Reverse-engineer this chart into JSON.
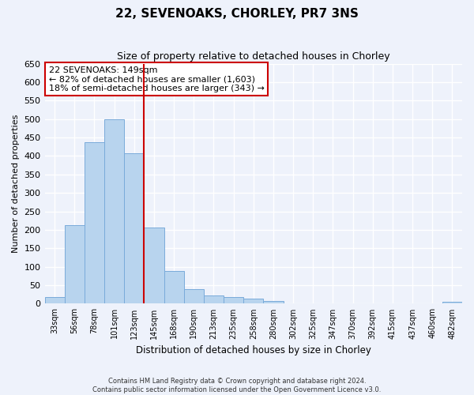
{
  "title": "22, SEVENOAKS, CHORLEY, PR7 3NS",
  "subtitle": "Size of property relative to detached houses in Chorley",
  "xlabel": "Distribution of detached houses by size in Chorley",
  "ylabel": "Number of detached properties",
  "bin_labels": [
    "33sqm",
    "56sqm",
    "78sqm",
    "101sqm",
    "123sqm",
    "145sqm",
    "168sqm",
    "190sqm",
    "213sqm",
    "235sqm",
    "258sqm",
    "280sqm",
    "302sqm",
    "325sqm",
    "347sqm",
    "370sqm",
    "392sqm",
    "415sqm",
    "437sqm",
    "460sqm",
    "482sqm"
  ],
  "bar_values": [
    18,
    213,
    437,
    500,
    408,
    207,
    88,
    40,
    22,
    18,
    13,
    8,
    0,
    0,
    0,
    0,
    0,
    0,
    0,
    0,
    5
  ],
  "bar_color": "#b8d4ee",
  "bar_edge_color": "#7aabda",
  "highlight_line_color": "#cc0000",
  "annotation_line1": "22 SEVENOAKS: 149sqm",
  "annotation_line2": "← 82% of detached houses are smaller (1,603)",
  "annotation_line3": "18% of semi-detached houses are larger (343) →",
  "annotation_box_color": "#ffffff",
  "annotation_border_color": "#cc0000",
  "ylim": [
    0,
    650
  ],
  "yticks": [
    0,
    50,
    100,
    150,
    200,
    250,
    300,
    350,
    400,
    450,
    500,
    550,
    600,
    650
  ],
  "footer_line1": "Contains HM Land Registry data © Crown copyright and database right 2024.",
  "footer_line2": "Contains public sector information licensed under the Open Government Licence v3.0.",
  "bg_color": "#eef2fb",
  "plot_bg_color": "#eef2fb"
}
